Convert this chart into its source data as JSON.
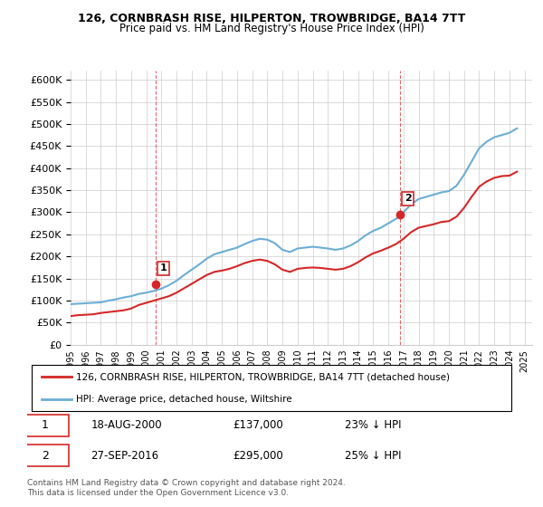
{
  "title": "126, CORNBRASH RISE, HILPERTON, TROWBRIDGE, BA14 7TT",
  "subtitle": "Price paid vs. HM Land Registry's House Price Index (HPI)",
  "legend_line1": "126, CORNBRASH RISE, HILPERTON, TROWBRIDGE, BA14 7TT (detached house)",
  "legend_line2": "HPI: Average price, detached house, Wiltshire",
  "footnote": "Contains HM Land Registry data © Crown copyright and database right 2024.\nThis data is licensed under the Open Government Licence v3.0.",
  "annotation1": {
    "num": "1",
    "date": "18-AUG-2000",
    "price": "£137,000",
    "pct": "23% ↓ HPI"
  },
  "annotation2": {
    "num": "2",
    "date": "27-SEP-2016",
    "price": "£295,000",
    "pct": "25% ↓ HPI"
  },
  "hpi_color": "#6baed6",
  "price_color": "#d62728",
  "annotation_color": "#d62728",
  "background_color": "#ffffff",
  "grid_color": "#cccccc",
  "ylim": [
    0,
    620000
  ],
  "yticks": [
    0,
    50000,
    100000,
    150000,
    200000,
    250000,
    300000,
    350000,
    400000,
    450000,
    500000,
    550000,
    600000
  ],
  "hpi_x": [
    1995.0,
    1995.5,
    1996.0,
    1996.5,
    1997.0,
    1997.5,
    1998.0,
    1998.5,
    1999.0,
    1999.5,
    2000.0,
    2000.5,
    2001.0,
    2001.5,
    2002.0,
    2002.5,
    2003.0,
    2003.5,
    2004.0,
    2004.5,
    2005.0,
    2005.5,
    2006.0,
    2006.5,
    2007.0,
    2007.5,
    2008.0,
    2008.5,
    2009.0,
    2009.5,
    2010.0,
    2010.5,
    2011.0,
    2011.5,
    2012.0,
    2012.5,
    2013.0,
    2013.5,
    2014.0,
    2014.5,
    2015.0,
    2015.5,
    2016.0,
    2016.5,
    2017.0,
    2017.5,
    2018.0,
    2018.5,
    2019.0,
    2019.5,
    2020.0,
    2020.5,
    2021.0,
    2021.5,
    2022.0,
    2022.5,
    2023.0,
    2023.5,
    2024.0,
    2024.5
  ],
  "hpi_y": [
    92000,
    93000,
    94000,
    95000,
    96000,
    100000,
    103000,
    107000,
    110000,
    115000,
    118000,
    122000,
    127000,
    135000,
    145000,
    158000,
    170000,
    182000,
    195000,
    205000,
    210000,
    215000,
    220000,
    228000,
    235000,
    240000,
    238000,
    230000,
    215000,
    210000,
    218000,
    220000,
    222000,
    220000,
    218000,
    215000,
    218000,
    225000,
    235000,
    248000,
    258000,
    265000,
    275000,
    285000,
    300000,
    318000,
    330000,
    335000,
    340000,
    345000,
    348000,
    360000,
    385000,
    415000,
    445000,
    460000,
    470000,
    475000,
    480000,
    490000
  ],
  "price_x": [
    1995.0,
    1995.5,
    1996.0,
    1996.5,
    1997.0,
    1997.5,
    1998.0,
    1998.5,
    1999.0,
    1999.5,
    2000.0,
    2000.5,
    2001.0,
    2001.5,
    2002.0,
    2002.5,
    2003.0,
    2003.5,
    2004.0,
    2004.5,
    2005.0,
    2005.5,
    2006.0,
    2006.5,
    2007.0,
    2007.5,
    2008.0,
    2008.5,
    2009.0,
    2009.5,
    2010.0,
    2010.5,
    2011.0,
    2011.5,
    2012.0,
    2012.5,
    2013.0,
    2013.5,
    2014.0,
    2014.5,
    2015.0,
    2015.5,
    2016.0,
    2016.5,
    2017.0,
    2017.5,
    2018.0,
    2018.5,
    2019.0,
    2019.5,
    2020.0,
    2020.5,
    2021.0,
    2021.5,
    2022.0,
    2022.5,
    2023.0,
    2023.5,
    2024.0,
    2024.5
  ],
  "price_y": [
    65000,
    67000,
    68000,
    69000,
    72000,
    74000,
    76000,
    78000,
    82000,
    90000,
    95000,
    100000,
    105000,
    110000,
    118000,
    128000,
    138000,
    148000,
    158000,
    165000,
    168000,
    172000,
    178000,
    185000,
    190000,
    193000,
    190000,
    182000,
    170000,
    165000,
    172000,
    174000,
    175000,
    174000,
    172000,
    170000,
    172000,
    178000,
    187000,
    198000,
    207000,
    213000,
    220000,
    228000,
    240000,
    255000,
    265000,
    269000,
    273000,
    278000,
    280000,
    290000,
    310000,
    335000,
    358000,
    370000,
    378000,
    382000,
    383000,
    392000
  ],
  "ann1_x": 2000.6,
  "ann1_y": 137000,
  "ann2_x": 2016.75,
  "ann2_y": 295000,
  "vline1_x": 2000.6,
  "vline2_x": 2016.75,
  "xticks": [
    1995,
    1996,
    1997,
    1998,
    1999,
    2000,
    2001,
    2002,
    2003,
    2004,
    2005,
    2006,
    2007,
    2008,
    2009,
    2010,
    2011,
    2012,
    2013,
    2014,
    2015,
    2016,
    2017,
    2018,
    2019,
    2020,
    2021,
    2022,
    2023,
    2024,
    2025
  ]
}
